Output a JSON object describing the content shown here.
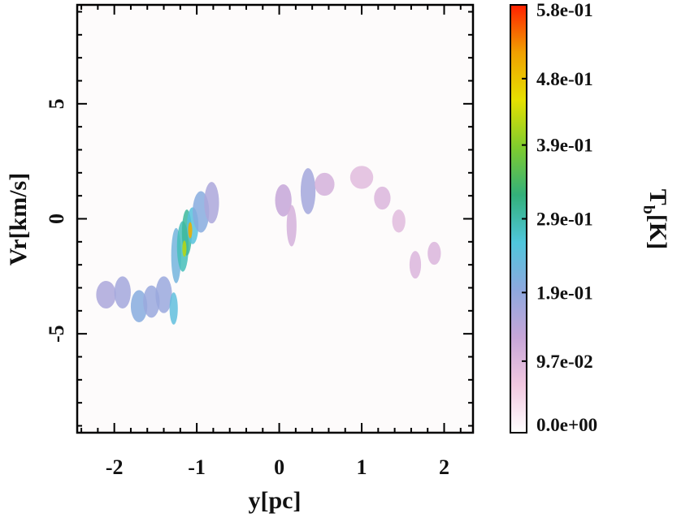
{
  "chart_data": {
    "type": "heatmap",
    "title": "",
    "xlabel": "y[pc]",
    "ylabel": "Vr[km/s]",
    "xlim": [
      -2.45,
      2.35
    ],
    "ylim": [
      -9.3,
      9.3
    ],
    "xticks": [
      -2,
      -1,
      0,
      1,
      2
    ],
    "xtick_labels": [
      "-2",
      "-1",
      "0",
      "1",
      "2"
    ],
    "yticks": [
      -5,
      0,
      5
    ],
    "ytick_labels": [
      "-5",
      "0",
      "5"
    ],
    "colorbar": {
      "label_main": "T",
      "label_sub": "b",
      "label_unit": "[K]",
      "range": [
        0.0,
        0.58
      ],
      "ticks": [
        0.0,
        0.097,
        0.19,
        0.29,
        0.39,
        0.48,
        0.58
      ],
      "tick_labels": [
        "0.0e+00",
        "9.7e-02",
        "1.9e-01",
        "2.9e-01",
        "3.9e-01",
        "4.8e-01",
        "5.8e-01"
      ],
      "colors": [
        "#ffffff",
        "#f2c8e0",
        "#c7a6d8",
        "#8ea8de",
        "#4fc6dc",
        "#33b07a",
        "#7fcc2e",
        "#e6e000",
        "#f0a000",
        "#ff2000"
      ]
    },
    "emission_blobs": [
      {
        "x": -2.1,
        "y": -3.3,
        "sx": 0.12,
        "sy": 0.6,
        "t": 0.16
      },
      {
        "x": -1.9,
        "y": -3.2,
        "sx": 0.1,
        "sy": 0.7,
        "t": 0.17
      },
      {
        "x": -1.7,
        "y": -3.8,
        "sx": 0.1,
        "sy": 0.7,
        "t": 0.2
      },
      {
        "x": -1.55,
        "y": -3.6,
        "sx": 0.1,
        "sy": 0.7,
        "t": 0.18
      },
      {
        "x": -1.4,
        "y": -3.3,
        "sx": 0.1,
        "sy": 0.8,
        "t": 0.18
      },
      {
        "x": -1.28,
        "y": -3.9,
        "sx": 0.05,
        "sy": 0.7,
        "t": 0.24
      },
      {
        "x": -1.25,
        "y": -1.6,
        "sx": 0.06,
        "sy": 1.2,
        "t": 0.22
      },
      {
        "x": -1.17,
        "y": -1.2,
        "sx": 0.07,
        "sy": 1.1,
        "t": 0.28
      },
      {
        "x": -1.12,
        "y": -0.6,
        "sx": 0.06,
        "sy": 1.0,
        "t": 0.3
      },
      {
        "x": -1.05,
        "y": -0.3,
        "sx": 0.07,
        "sy": 0.8,
        "t": 0.25
      },
      {
        "x": -0.95,
        "y": 0.3,
        "sx": 0.1,
        "sy": 0.9,
        "t": 0.2
      },
      {
        "x": -0.82,
        "y": 0.7,
        "sx": 0.09,
        "sy": 0.9,
        "t": 0.16
      },
      {
        "x": 0.05,
        "y": 0.8,
        "sx": 0.1,
        "sy": 0.7,
        "t": 0.13
      },
      {
        "x": 0.15,
        "y": -0.3,
        "sx": 0.06,
        "sy": 0.9,
        "t": 0.11
      },
      {
        "x": 0.35,
        "y": 1.2,
        "sx": 0.09,
        "sy": 1.0,
        "t": 0.17
      },
      {
        "x": 0.55,
        "y": 1.5,
        "sx": 0.12,
        "sy": 0.5,
        "t": 0.11
      },
      {
        "x": 1.0,
        "y": 1.8,
        "sx": 0.14,
        "sy": 0.5,
        "t": 0.09
      },
      {
        "x": 1.25,
        "y": 0.9,
        "sx": 0.1,
        "sy": 0.5,
        "t": 0.1
      },
      {
        "x": 1.45,
        "y": -0.1,
        "sx": 0.08,
        "sy": 0.5,
        "t": 0.09
      },
      {
        "x": 1.65,
        "y": -2.0,
        "sx": 0.07,
        "sy": 0.6,
        "t": 0.1
      },
      {
        "x": 1.88,
        "y": -1.5,
        "sx": 0.08,
        "sy": 0.5,
        "t": 0.1
      }
    ],
    "peak_marks": [
      {
        "x": -1.15,
        "y": -1.3,
        "t": 0.42
      },
      {
        "x": -1.08,
        "y": -0.5,
        "t": 0.5
      }
    ]
  }
}
